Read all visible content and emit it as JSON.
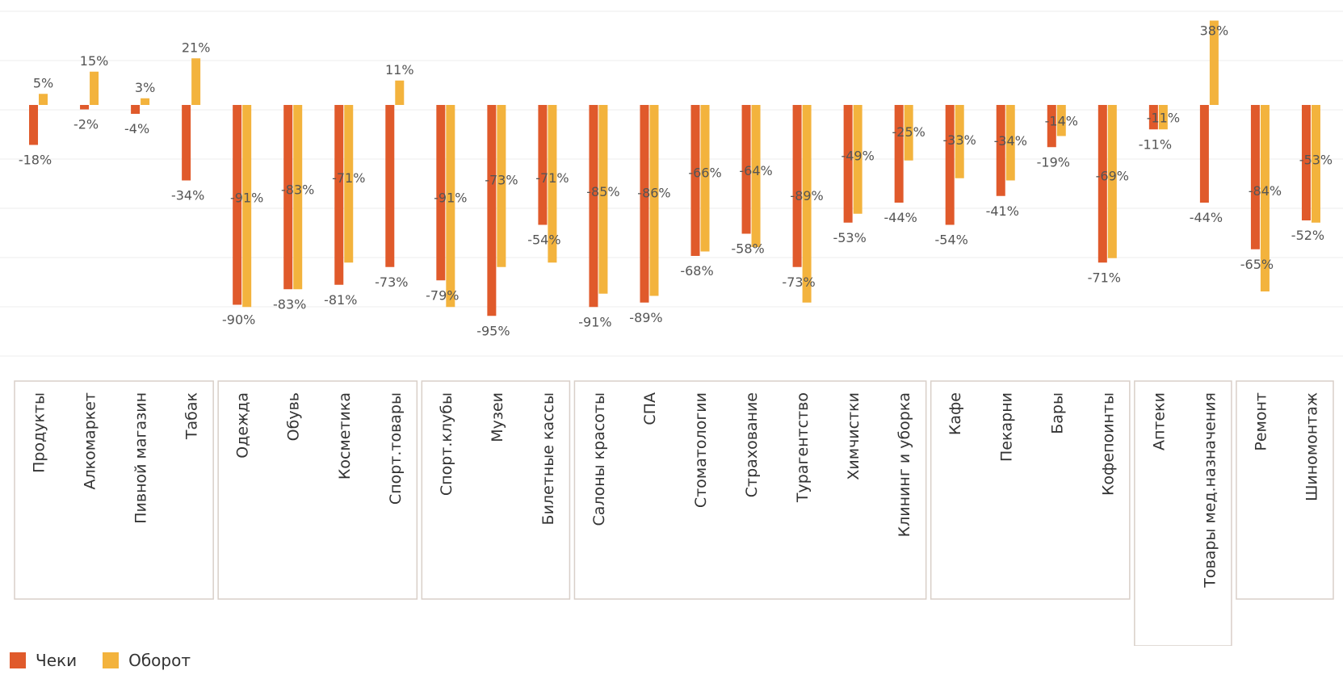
{
  "chart_data": {
    "type": "bar",
    "title": "",
    "xlabel": "",
    "ylabel": "",
    "ylim": [
      -100,
      40
    ],
    "grid": true,
    "legend_position": "bottom-left",
    "colors": {
      "checks": "#E05A2B",
      "turnover": "#F3B33D",
      "grid": "#ececec",
      "group_border": "#d9cfc8",
      "label": "#555555"
    },
    "series": [
      {
        "name": "Чеки",
        "key": "checks",
        "values": [
          -18,
          -2,
          -4,
          -34,
          -90,
          -83,
          -81,
          -73,
          -79,
          -95,
          -54,
          -91,
          -89,
          -68,
          -58,
          -73,
          -53,
          -44,
          -54,
          -41,
          -19,
          -71,
          -11,
          -44,
          -65,
          -52
        ]
      },
      {
        "name": "Оборот",
        "key": "turnover",
        "values": [
          5,
          15,
          3,
          21,
          -91,
          -83,
          -71,
          11,
          -91,
          -73,
          -71,
          -85,
          -86,
          -66,
          -64,
          -89,
          -49,
          -25,
          -33,
          -34,
          -14,
          -69,
          -11,
          38,
          -84,
          -53
        ]
      }
    ],
    "categories": [
      "Продукты",
      "Алкомаркет",
      "Пивной магазин",
      "Табак",
      "Одежда",
      "Обувь",
      "Косметика",
      "Спорт.товары",
      "Спорт.клубы",
      "Музеи",
      "Билетные кассы",
      "Салоны красоты",
      "СПА",
      "Стоматологии",
      "Страхование",
      "Турагентство",
      "Химчистки",
      "Клининг и уборка",
      "Кафе",
      "Пекарни",
      "Бары",
      "Кофепоинты",
      "Аптеки",
      "Товары мед.назначения",
      "Ремонт",
      "Шиномонтаж"
    ],
    "data_labels": {
      "checks": [
        "-18%",
        "-2%",
        "-4%",
        "-34%",
        "-90%",
        "-83%",
        "-81%",
        "-73%",
        "-79%",
        "-95%",
        "-54%",
        "-91%",
        "-89%",
        "-68%",
        "-58%",
        "-73%",
        "-53%",
        "-44%",
        "-54%",
        "-41%",
        "-19%",
        "-71%",
        "-11%",
        "-44%",
        "-65%",
        "-52%"
      ],
      "turnover": [
        "5%",
        "15%",
        "3%",
        "21%",
        "-91%",
        "-83%",
        "-71%",
        "11%",
        "-91%",
        "-73%",
        "-71%",
        "-85%",
        "-86%",
        "-66%",
        "-64%",
        "-89%",
        "-49%",
        "-25%",
        "-33%",
        "-34%",
        "-14%",
        "-69%",
        "-11%",
        "38%",
        "-84%",
        "-53%"
      ]
    },
    "groups": [
      {
        "start": 0,
        "end": 3
      },
      {
        "start": 4,
        "end": 7
      },
      {
        "start": 8,
        "end": 10
      },
      {
        "start": 11,
        "end": 17
      },
      {
        "start": 18,
        "end": 21
      },
      {
        "start": 22,
        "end": 23
      },
      {
        "start": 24,
        "end": 25
      }
    ]
  },
  "legend": {
    "checks_label": "Чеки",
    "turnover_label": "Оборот"
  }
}
